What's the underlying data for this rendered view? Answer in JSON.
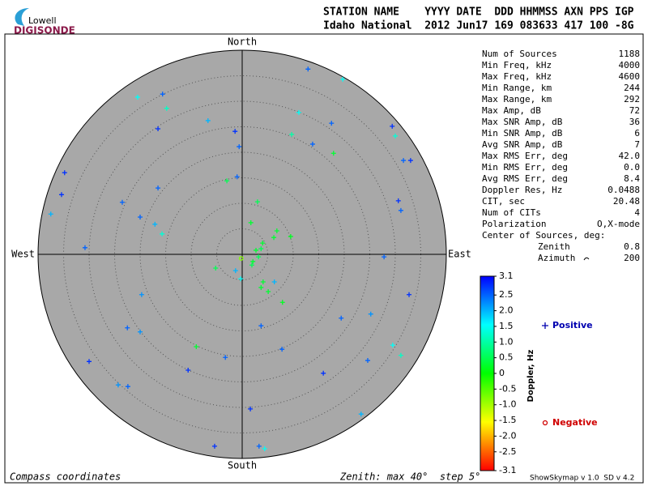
{
  "header": {
    "logo_top": "Lowell",
    "logo_bottom": "DIGISONDE",
    "line1": "STATION NAME    YYYY DATE  DDD HHMMSS AXN PPS IGP",
    "line2": "Idaho National  2012 Jun17 169 083633 417 100 -8G"
  },
  "stats": [
    [
      "Num of Sources",
      "1188"
    ],
    [
      "Min Freq, kHz",
      "4000"
    ],
    [
      "Max Freq, kHz",
      "4600"
    ],
    [
      "Min Range, km",
      "244"
    ],
    [
      "Max Range, km",
      "292"
    ],
    [
      "Max Amp, dB",
      "72"
    ],
    [
      "Max SNR Amp, dB",
      "36"
    ],
    [
      "Min SNR Amp, dB",
      "6"
    ],
    [
      "Avg SNR Amp, dB",
      "7"
    ],
    [
      "Max RMS Err, deg",
      "42.0"
    ],
    [
      "Min RMS Err, deg",
      "0.0"
    ],
    [
      "Avg RMS Err, deg",
      "8.4"
    ],
    [
      "Doppler Res, Hz",
      "0.0488"
    ],
    [
      "CIT, sec",
      "20.48"
    ],
    [
      "Num of CITs",
      "4"
    ],
    [
      "Polarization",
      "O,X-mode"
    ]
  ],
  "center": {
    "title": "Center of Sources, deg:",
    "rows": [
      [
        "Zenith",
        "0.8"
      ],
      [
        "Azimuth",
        "200"
      ]
    ]
  },
  "footer": {
    "left": "Compass coordinates",
    "middle": "Zenith: max 40°  step 5°",
    "right": "ShowSkymap v 1.0  SD v 4.2"
  },
  "chart_data": {
    "type": "skymap",
    "direction_labels": {
      "north": "North",
      "south": "South",
      "east": "East",
      "west": "West"
    },
    "rlim": [
      0,
      40
    ],
    "rticks": [
      5,
      10,
      15,
      20,
      25,
      30,
      35,
      40
    ],
    "x": [
      12.9,
      19.7,
      -15.6,
      -20.5,
      -14.8,
      11.1,
      -6.7,
      17.5,
      -16.5,
      -1.4,
      29.4,
      9.7,
      30.0,
      13.8,
      -0.6,
      17.9,
      31.6,
      33.0,
      -34.8,
      -1.0,
      -3.0,
      -16.5,
      -35.4,
      -23.5,
      3.0,
      30.6,
      31.1,
      -37.5,
      -20.0,
      1.7,
      -17.1,
      6.8,
      -15.7,
      9.5,
      6.2,
      4.0,
      3.7,
      -30.8,
      2.7,
      27.8,
      3.2,
      -0.2,
      2.1,
      1.9,
      -5.2,
      -1.3,
      -0.3,
      4.1,
      6.3,
      3.7,
      5.1,
      7.9,
      -19.7,
      32.7,
      19.4,
      25.2,
      3.7,
      -22.5,
      -20.0,
      29.5,
      7.8,
      -9.0,
      31.1,
      -3.3,
      -30.0,
      24.6,
      -10.6,
      15.9,
      -24.3,
      -22.4,
      1.6,
      23.3,
      -5.4,
      3.3,
      4.4
    ],
    "y": [
      36.3,
      34.3,
      31.4,
      30.8,
      28.6,
      27.8,
      26.2,
      25.7,
      24.6,
      24.1,
      25.1,
      23.5,
      23.2,
      21.6,
      21.1,
      19.8,
      18.4,
      18.4,
      16.0,
      15.2,
      14.4,
      13.0,
      11.7,
      10.2,
      10.3,
      10.5,
      8.6,
      7.9,
      7.3,
      6.2,
      5.9,
      4.6,
      4.0,
      3.5,
      3.3,
      2.2,
      1.1,
      1.3,
      0.8,
      -0.5,
      -0.5,
      -0.8,
      -1.4,
      -2.1,
      -2.7,
      -3.2,
      -4.8,
      -5.4,
      -5.4,
      -6.5,
      -7.3,
      -9.4,
      -7.9,
      -7.9,
      -12.5,
      -11.7,
      -14.0,
      -14.4,
      -15.2,
      -17.8,
      -18.6,
      -18.1,
      -19.8,
      -20.2,
      -21.0,
      -20.8,
      -22.7,
      -23.3,
      -25.6,
      -25.9,
      -30.3,
      -31.3,
      -37.6,
      -37.6,
      -38.1
    ],
    "doppler": [
      2.5,
      1.5,
      2.5,
      1.5,
      1.2,
      1.5,
      2.0,
      2.5,
      2.8,
      2.8,
      2.8,
      1.0,
      1.3,
      2.5,
      2.5,
      0.3,
      2.5,
      2.8,
      2.8,
      2.5,
      0.5,
      2.5,
      2.8,
      2.5,
      0.5,
      2.8,
      2.5,
      2.0,
      2.5,
      0.3,
      2.0,
      0.3,
      1.3,
      0.2,
      0.3,
      0.3,
      0.5,
      2.5,
      0.3,
      2.5,
      0.5,
      -0.8,
      0.3,
      0.5,
      0.5,
      2.0,
      1.5,
      0.3,
      2.0,
      0.3,
      0.3,
      0.2,
      2.2,
      2.8,
      2.5,
      2.2,
      2.5,
      2.5,
      2.2,
      1.5,
      2.5,
      0.3,
      1.2,
      2.5,
      2.8,
      2.5,
      2.8,
      2.8,
      2.2,
      2.5,
      2.8,
      2.0,
      2.8,
      2.5,
      1.5
    ],
    "colorbar": {
      "label": "Doppler, Hz",
      "clim": [
        -3.1,
        3.1
      ],
      "ticks": [
        3.1,
        2.5,
        {
          "value": 2,
          "label": "2.0"
        },
        1.5,
        {
          "value": 1,
          "label": "1.0"
        },
        0.5,
        0,
        -0.5,
        {
          "value": -1,
          "label": "-1.0"
        },
        -1.5,
        {
          "value": -2,
          "label": "-2.0"
        },
        -2.5,
        -3.1
      ]
    },
    "legend": {
      "positive": "Positive",
      "negative": "Negative",
      "positive_color": "#0000b0",
      "negative_color": "#d00000"
    },
    "disk_color": "#a8a8a8"
  }
}
